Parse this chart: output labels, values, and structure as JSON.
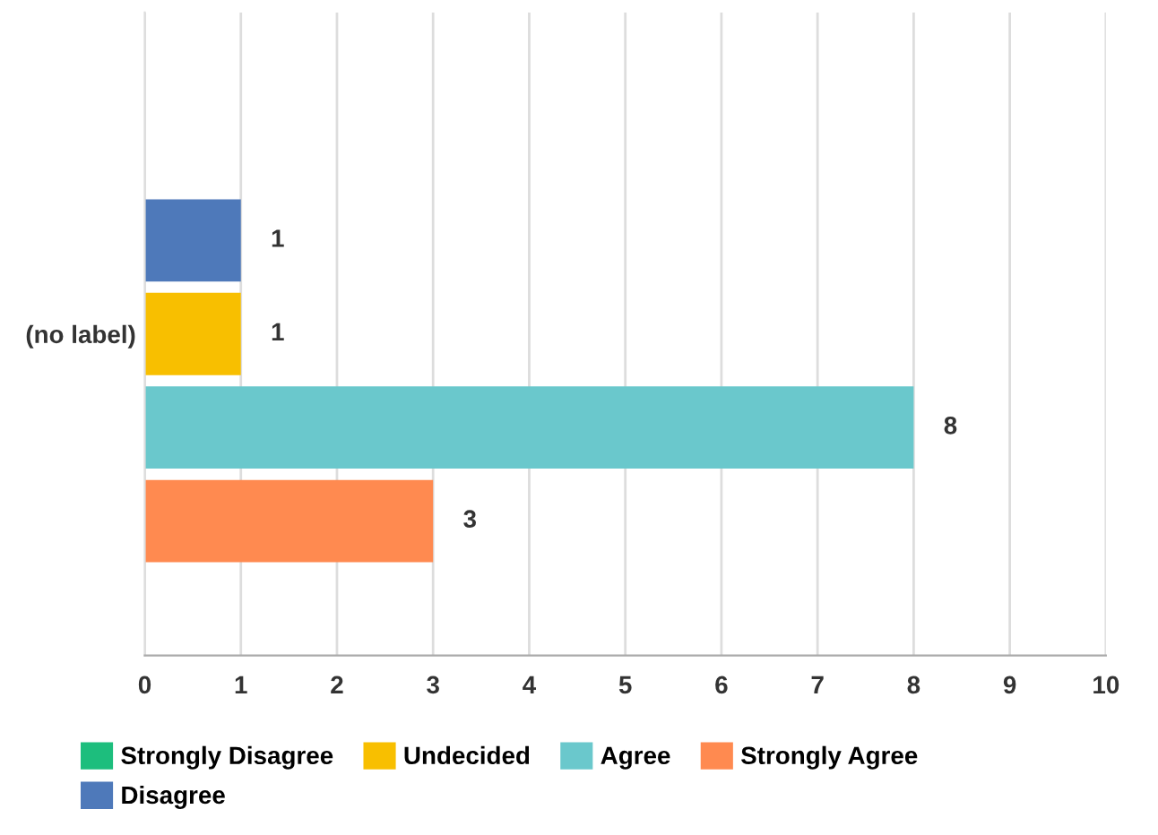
{
  "chart_data": {
    "type": "bar",
    "orientation": "horizontal",
    "categories": [
      "(no label)"
    ],
    "series": [
      {
        "name": "Strongly Disagree",
        "color": "#1dbe7d",
        "values": [
          0
        ],
        "value_labels": [
          null
        ]
      },
      {
        "name": "Disagree",
        "color": "#4e79ba",
        "values": [
          1
        ],
        "value_labels": [
          "1"
        ]
      },
      {
        "name": "Undecided",
        "color": "#f8bf00",
        "values": [
          1
        ],
        "value_labels": [
          "1"
        ]
      },
      {
        "name": "Agree",
        "color": "#6ac8cc",
        "values": [
          8
        ],
        "value_labels": [
          "8"
        ]
      },
      {
        "name": "Strongly Agree",
        "color": "#ff8a50",
        "values": [
          3
        ],
        "value_labels": [
          "3"
        ]
      }
    ],
    "xlim": [
      0,
      10
    ],
    "xticks": [
      0,
      1,
      2,
      3,
      4,
      5,
      6,
      7,
      8,
      9,
      10
    ],
    "grid": "x",
    "legend": "bottom"
  }
}
